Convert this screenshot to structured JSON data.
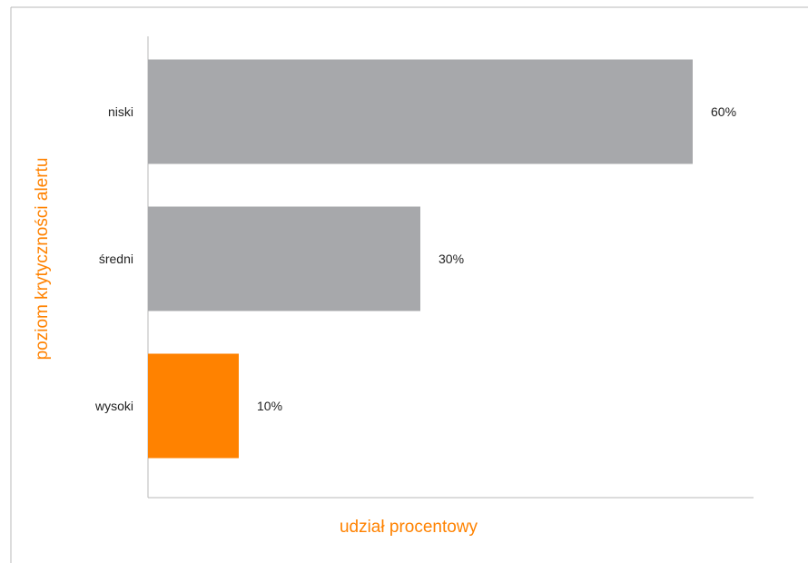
{
  "chart_data": {
    "type": "bar",
    "orientation": "horizontal",
    "categories": [
      "niski",
      "średni",
      "wysoki"
    ],
    "values": [
      60,
      30,
      10
    ],
    "value_labels": [
      "60%",
      "30%",
      "10%"
    ],
    "xlim": [
      0,
      66.7
    ],
    "xlabel": "udział procentowy",
    "ylabel": "poziom krytyczności alertu",
    "grid": false,
    "legend": "none",
    "colors": {
      "default_bar": "#a7a8ab",
      "highlight_bar": "#ff8200",
      "axis_title": "#ff8200",
      "axis_line": "#b8b8b8",
      "frame": "#b8b8b8"
    },
    "highlight_category": "wysoki"
  }
}
